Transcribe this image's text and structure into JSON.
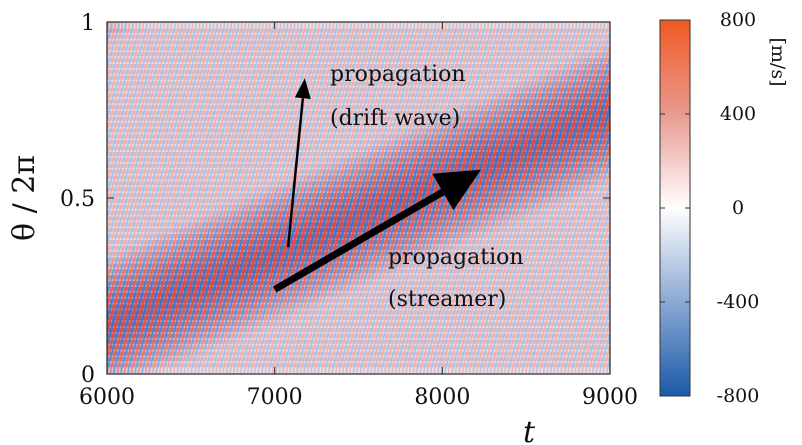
{
  "chart_data": {
    "type": "heatmap",
    "title": "",
    "xlabel": "t",
    "ylabel": "θ / 2π",
    "xlim": [
      6000,
      9000
    ],
    "ylim": [
      0,
      1
    ],
    "x_ticks": [
      "6000",
      "7000",
      "8000",
      "9000"
    ],
    "y_ticks": [
      "0",
      "0.5",
      "1"
    ],
    "colorbar": {
      "range": [
        -800,
        800
      ],
      "ticks": [
        "800",
        "400",
        "0",
        "-400",
        "-800"
      ],
      "unit": "[m/s]",
      "colors": {
        "low": "#1a5aa8",
        "mid": "#ffffff",
        "high": "#e8531e"
      }
    },
    "pattern": {
      "streamer_band_center_at_xmin": 0.14,
      "streamer_band_slope_per_1000": 0.2,
      "stripe_period_t": 42,
      "stripe_slope_per_1000": 1.7
    },
    "annotations": [
      {
        "text_lines": [
          "propagation",
          "(drift wave)"
        ],
        "arrow_from": [
          7080,
          0.36
        ],
        "arrow_to": [
          7180,
          0.84
        ]
      },
      {
        "text_lines": [
          "propagation",
          "(streamer)"
        ],
        "arrow_from": [
          7000,
          0.24
        ],
        "arrow_to": [
          8230,
          0.58
        ]
      }
    ]
  }
}
